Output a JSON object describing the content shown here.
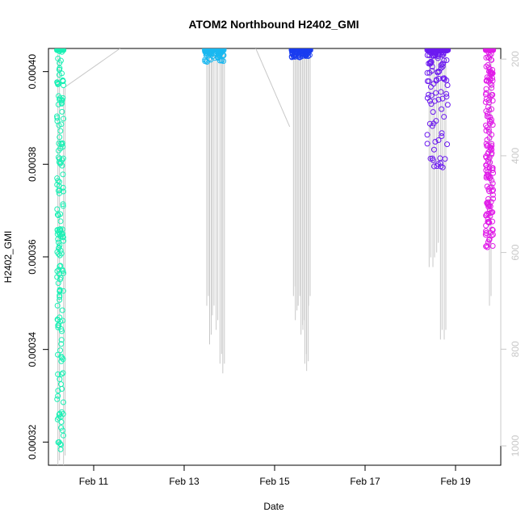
{
  "chart_data": {
    "type": "scatter",
    "title": "ATOM2 Northbound H2402_GMI",
    "xlabel": "Date",
    "ylabel": "H2402_GMI",
    "x_axis": {
      "type": "date",
      "range": [
        "2017-02-10",
        "2017-02-20"
      ],
      "ticks": [
        {
          "date": "2017-02-11",
          "label": "Feb 11"
        },
        {
          "date": "2017-02-13",
          "label": "Feb 13"
        },
        {
          "date": "2017-02-15",
          "label": "Feb 15"
        },
        {
          "date": "2017-02-17",
          "label": "Feb 17"
        },
        {
          "date": "2017-02-19",
          "label": "Feb 19"
        }
      ]
    },
    "y_axis": {
      "ylim": [
        0.000315,
        0.000405
      ],
      "ticks": [
        {
          "value": 0.00032,
          "label": "0.00032"
        },
        {
          "value": 0.00034,
          "label": "0.00034"
        },
        {
          "value": 0.00036,
          "label": "0.00036"
        },
        {
          "value": 0.00038,
          "label": "0.00038"
        },
        {
          "value": 0.0004,
          "label": "0.00040"
        }
      ]
    },
    "y2_axis": {
      "note": "depth axis (reversed)",
      "ylim": [
        178,
        1040
      ],
      "reversed": true,
      "ticks": [
        {
          "value": 200,
          "label": "200"
        },
        {
          "value": 400,
          "label": "400"
        },
        {
          "value": 600,
          "label": "600"
        },
        {
          "value": 800,
          "label": "800"
        },
        {
          "value": 1000,
          "label": "1000"
        }
      ],
      "color": "#c8c8c8"
    },
    "series": [
      {
        "color": "#19f0b4",
        "date_range": [
          "2017-02-10T04:30",
          "2017-02-10T08:00"
        ],
        "values_range": [
          0.000316,
          0.000405
        ]
      },
      {
        "color": "#1ab8f0",
        "date_range": [
          "2017-02-13T11:00",
          "2017-02-13T21:00"
        ],
        "values_range": [
          0.000402,
          0.000405
        ]
      },
      {
        "color": "#1a3cf0",
        "date_range": [
          "2017-02-15T09:00",
          "2017-02-15T19:00"
        ],
        "values_range": [
          0.000403,
          0.000405
        ]
      },
      {
        "color": "#6c1af0",
        "date_range": [
          "2017-02-18T09:00",
          "2017-02-18T20:00"
        ],
        "values_range": [
          0.000378,
          0.000405
        ]
      },
      {
        "color": "#e01ae8",
        "date_range": [
          "2017-02-19T16:00",
          "2017-02-19T20:00"
        ],
        "values_range": [
          0.000362,
          0.000405
        ]
      }
    ],
    "depth_trace": {
      "color": "#c8c8c8",
      "profiles": [
        {
          "date": "2017-02-10T05:00",
          "min_depth": 190,
          "max_depth": 1050
        },
        {
          "date": "2017-02-10T08:00",
          "min_depth": 260,
          "max_depth": 1040
        },
        {
          "date": "2017-02-13T12:00",
          "min_depth": 190,
          "max_depth": 710
        },
        {
          "date": "2017-02-13T13:30",
          "min_depth": 190,
          "max_depth": 790
        },
        {
          "date": "2017-02-13T15:00",
          "min_depth": 190,
          "max_depth": 730
        },
        {
          "date": "2017-02-13T17:00",
          "min_depth": 190,
          "max_depth": 760
        },
        {
          "date": "2017-02-13T19:00",
          "min_depth": 190,
          "max_depth": 830
        },
        {
          "date": "2017-02-13T20:30",
          "min_depth": 190,
          "max_depth": 850
        },
        {
          "date": "2017-02-15T10:00",
          "min_depth": 190,
          "max_depth": 690
        },
        {
          "date": "2017-02-15T11:00",
          "min_depth": 190,
          "max_depth": 740
        },
        {
          "date": "2017-02-15T12:30",
          "min_depth": 190,
          "max_depth": 710
        },
        {
          "date": "2017-02-15T14:00",
          "min_depth": 190,
          "max_depth": 770
        },
        {
          "date": "2017-02-15T15:00",
          "min_depth": 190,
          "max_depth": 760
        },
        {
          "date": "2017-02-15T16:00",
          "min_depth": 190,
          "max_depth": 830
        },
        {
          "date": "2017-02-15T17:00",
          "min_depth": 190,
          "max_depth": 845
        },
        {
          "date": "2017-02-15T18:00",
          "min_depth": 190,
          "max_depth": 710
        },
        {
          "date": "2017-02-18T10:00",
          "min_depth": 190,
          "max_depth": 630
        },
        {
          "date": "2017-02-18T12:00",
          "min_depth": 190,
          "max_depth": 630
        },
        {
          "date": "2017-02-18T14:00",
          "min_depth": 190,
          "max_depth": 600
        },
        {
          "date": "2017-02-18T16:00",
          "min_depth": 190,
          "max_depth": 780
        },
        {
          "date": "2017-02-18T18:00",
          "min_depth": 190,
          "max_depth": 780
        },
        {
          "date": "2017-02-19T18:00",
          "min_depth": 190,
          "max_depth": 710
        }
      ],
      "transits": [
        {
          "from_date": "2017-02-10T08:00",
          "from_depth": 260,
          "to_date": "2017-02-11T14:00",
          "to_depth": 170
        },
        {
          "from_date": "2017-02-14T14:00",
          "from_depth": 170,
          "to_date": "2017-02-15T08:00",
          "to_depth": 340
        }
      ]
    },
    "grid": false,
    "legend": "none"
  }
}
